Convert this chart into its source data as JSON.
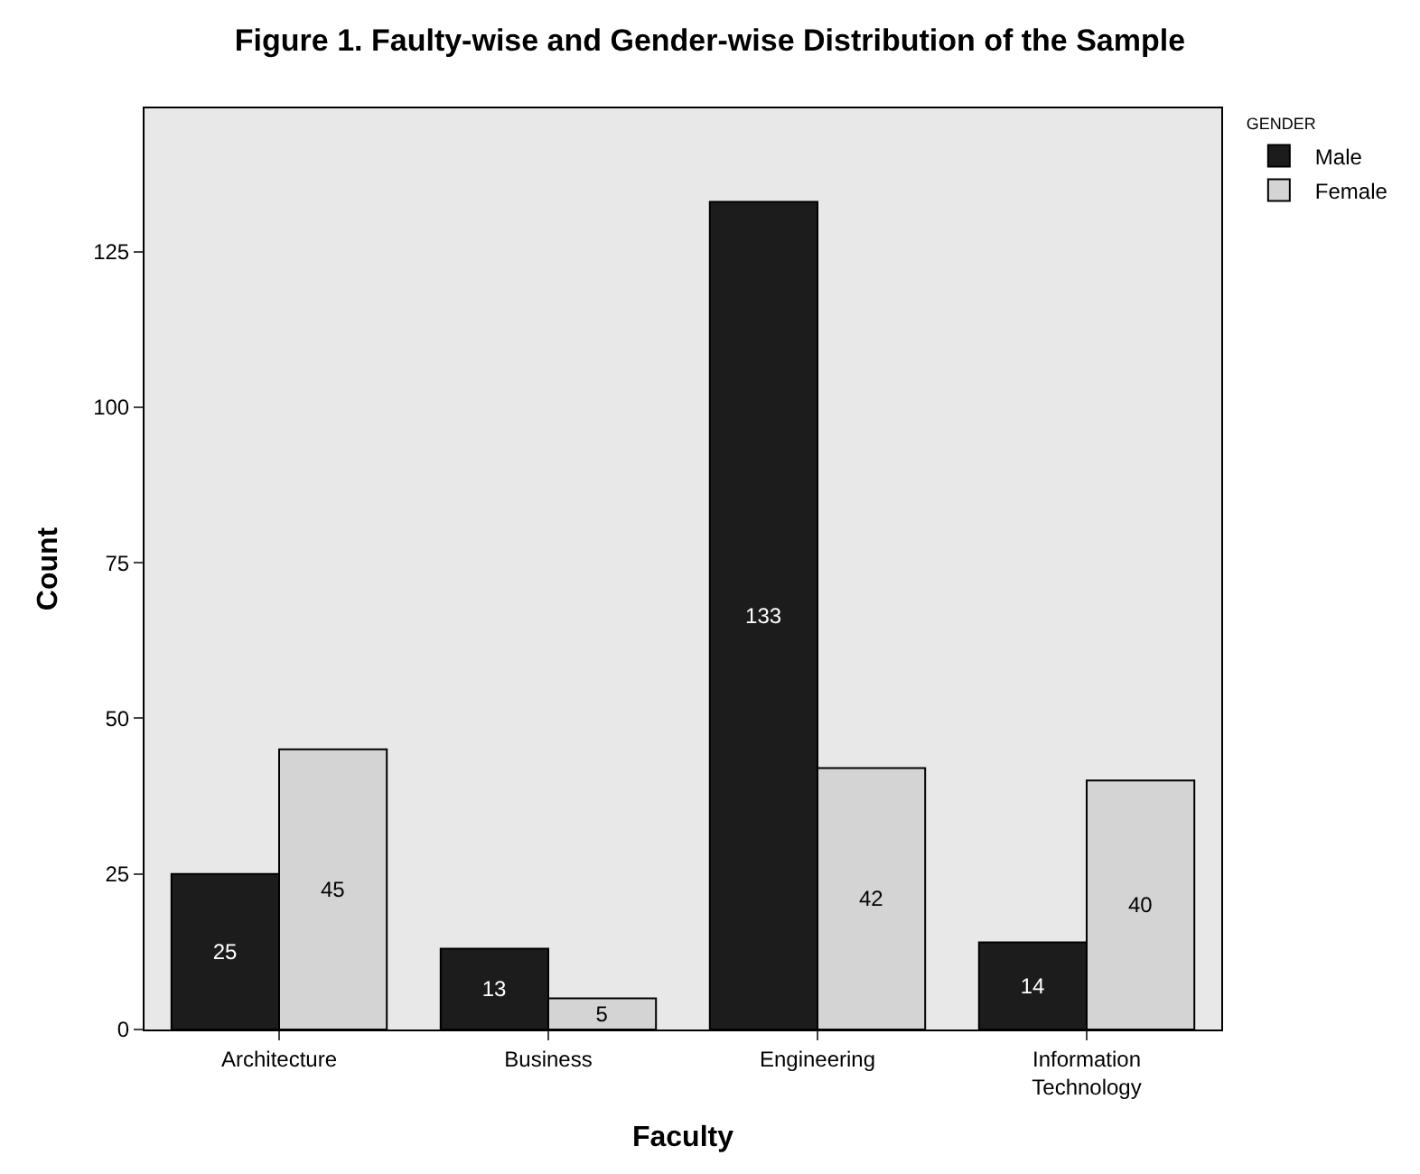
{
  "chart_data": {
    "type": "bar",
    "title": "Figure 1. Faulty-wise and Gender-wise Distribution of the Sample",
    "xlabel": "Faculty",
    "ylabel": "Count",
    "legend_title": "GENDER",
    "categories": [
      "Architecture",
      "Business",
      "Engineering",
      "Information Technology"
    ],
    "series": [
      {
        "name": "Male",
        "color": "#1c1c1c",
        "values": [
          25,
          13,
          133,
          14
        ]
      },
      {
        "name": "Female",
        "color": "#d4d4d4",
        "values": [
          45,
          5,
          42,
          40
        ]
      }
    ],
    "ylim": [
      0,
      148
    ],
    "yticks": [
      0,
      25,
      50,
      75,
      100,
      125
    ],
    "data_labels": true,
    "legend": "top right",
    "grid": false
  }
}
